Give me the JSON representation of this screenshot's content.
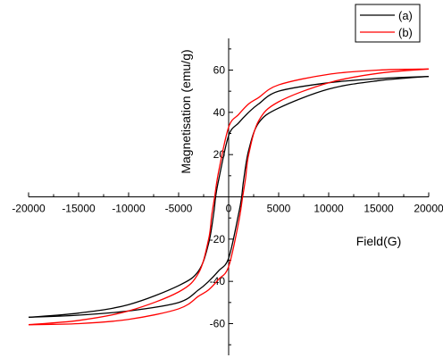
{
  "chart_data": {
    "type": "line",
    "title": "",
    "xlabel": "Field(G)",
    "ylabel": "Magnetisation (emu/g)",
    "xlim": [
      -20000,
      20000
    ],
    "ylim": [
      -75,
      75
    ],
    "xticks": [
      -20000,
      -15000,
      -10000,
      -5000,
      0,
      5000,
      10000,
      15000,
      20000
    ],
    "xtick_labels": [
      "-20000",
      "-15000",
      "-10000",
      "-5000",
      "0",
      "5000",
      "10000",
      "15000",
      "20000"
    ],
    "yticks": [
      -60,
      -40,
      -20,
      20,
      40,
      60
    ],
    "ytick_labels": [
      "-60",
      "-40",
      "-20",
      "20",
      "40",
      "60"
    ],
    "legend_position": "top-right",
    "grid": false,
    "series": [
      {
        "name": "(a)",
        "color": "#000000",
        "branches": [
          {
            "x": [
              20000,
              15000,
              10000,
              5000,
              3000,
              2000,
              1000,
              0,
              -1000,
              -1300,
              -1500,
              -2000,
              -3000,
              -5000,
              -10000,
              -15000,
              -20000
            ],
            "y": [
              57,
              56,
              54,
              50,
              44,
              40,
              35,
              29,
              8,
              0,
              -8,
              -22,
              -35,
              -42,
              -51,
              -55,
              -57
            ]
          },
          {
            "x": [
              -20000,
              -15000,
              -10000,
              -5000,
              -3000,
              -2000,
              -1000,
              0,
              1000,
              1300,
              1500,
              2000,
              3000,
              5000,
              10000,
              15000,
              20000
            ],
            "y": [
              -57,
              -56,
              -54,
              -50,
              -44,
              -40,
              -35,
              -29,
              -8,
              0,
              8,
              22,
              35,
              42,
              51,
              55,
              57
            ]
          }
        ]
      },
      {
        "name": "(b)",
        "color": "#ff0000",
        "branches": [
          {
            "x": [
              20000,
              15000,
              10000,
              5000,
              3000,
              2000,
              1000,
              0,
              -1000,
              -1400,
              -1700,
              -2000,
              -3000,
              -5000,
              -10000,
              -15000,
              -20000
            ],
            "y": [
              60.5,
              60,
              58,
              53,
              47,
              44,
              39,
              33,
              12,
              0,
              -9,
              -20,
              -36,
              -45,
              -54,
              -58.5,
              -60.5
            ]
          },
          {
            "x": [
              -20000,
              -15000,
              -10000,
              -5000,
              -3000,
              -2000,
              -1000,
              0,
              1000,
              1400,
              1700,
              2000,
              3000,
              5000,
              10000,
              15000,
              20000
            ],
            "y": [
              -60.5,
              -60,
              -58,
              -53,
              -47,
              -44,
              -39,
              -33,
              -12,
              0,
              9,
              20,
              36,
              45,
              54,
              58.5,
              60.5
            ]
          }
        ]
      }
    ]
  }
}
